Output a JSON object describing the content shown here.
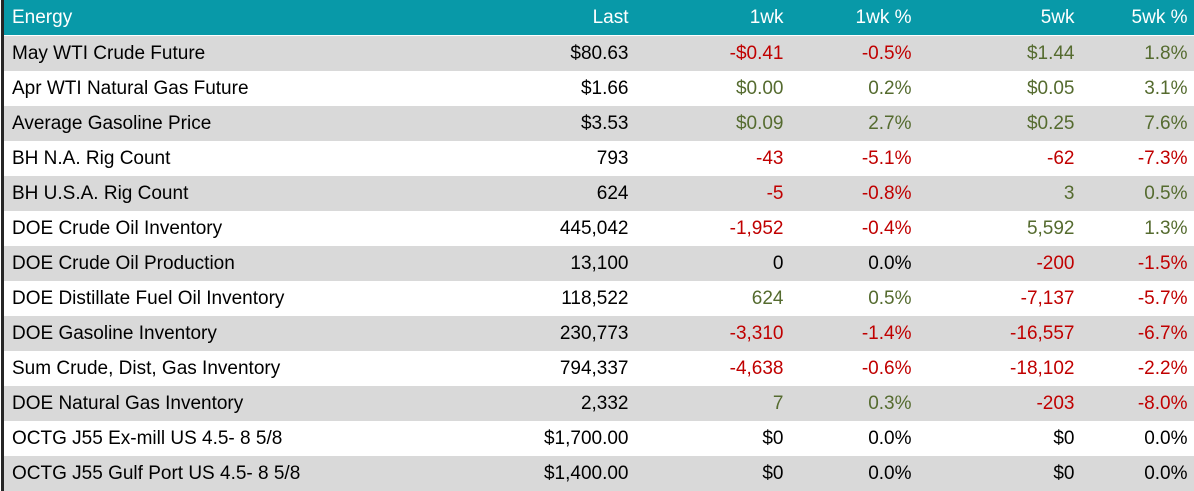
{
  "colors": {
    "header_bg": "#0899A8",
    "header_text": "#FFFFFF",
    "stripe": "#D9D9D9",
    "row_white": "#FFFFFF",
    "positive": "#556B2F",
    "negative": "#C00000",
    "neutral": "#000000",
    "left_border": "#262626"
  },
  "chart_data": {
    "type": "table",
    "title": "Energy",
    "columns": [
      "Energy",
      "Last",
      "1wk",
      "1wk %",
      "5wk",
      "5wk %"
    ],
    "rows": [
      {
        "cells": [
          "May WTI Crude Future",
          "$80.63",
          "-$0.41",
          "-0.5%",
          "$1.44",
          "1.8%"
        ],
        "tones": [
          "neu",
          "neu",
          "neg",
          "neg",
          "pos",
          "pos"
        ]
      },
      {
        "cells": [
          "Apr WTI Natural Gas Future",
          "$1.66",
          "$0.00",
          "0.2%",
          "$0.05",
          "3.1%"
        ],
        "tones": [
          "neu",
          "neu",
          "pos",
          "pos",
          "pos",
          "pos"
        ]
      },
      {
        "cells": [
          "Average Gasoline Price",
          "$3.53",
          "$0.09",
          "2.7%",
          "$0.25",
          "7.6%"
        ],
        "tones": [
          "neu",
          "neu",
          "pos",
          "pos",
          "pos",
          "pos"
        ]
      },
      {
        "cells": [
          "BH N.A. Rig Count",
          "793",
          "-43",
          "-5.1%",
          "-62",
          "-7.3%"
        ],
        "tones": [
          "neu",
          "neu",
          "neg",
          "neg",
          "neg",
          "neg"
        ]
      },
      {
        "cells": [
          "BH U.S.A. Rig Count",
          "624",
          "-5",
          "-0.8%",
          "3",
          "0.5%"
        ],
        "tones": [
          "neu",
          "neu",
          "neg",
          "neg",
          "pos",
          "pos"
        ]
      },
      {
        "cells": [
          "DOE Crude Oil Inventory",
          "445,042",
          "-1,952",
          "-0.4%",
          "5,592",
          "1.3%"
        ],
        "tones": [
          "neu",
          "neu",
          "neg",
          "neg",
          "pos",
          "pos"
        ]
      },
      {
        "cells": [
          "DOE Crude Oil Production",
          "13,100",
          "0",
          "0.0%",
          "-200",
          "-1.5%"
        ],
        "tones": [
          "neu",
          "neu",
          "neu",
          "neu",
          "neg",
          "neg"
        ]
      },
      {
        "cells": [
          "DOE Distillate Fuel Oil Inventory",
          "118,522",
          "624",
          "0.5%",
          "-7,137",
          "-5.7%"
        ],
        "tones": [
          "neu",
          "neu",
          "pos",
          "pos",
          "neg",
          "neg"
        ]
      },
      {
        "cells": [
          "DOE Gasoline Inventory",
          "230,773",
          "-3,310",
          "-1.4%",
          "-16,557",
          "-6.7%"
        ],
        "tones": [
          "neu",
          "neu",
          "neg",
          "neg",
          "neg",
          "neg"
        ]
      },
      {
        "cells": [
          "Sum Crude, Dist, Gas Inventory",
          "794,337",
          "-4,638",
          "-0.6%",
          "-18,102",
          "-2.2%"
        ],
        "tones": [
          "neu",
          "neu",
          "neg",
          "neg",
          "neg",
          "neg"
        ]
      },
      {
        "cells": [
          "DOE Natural Gas Inventory",
          "2,332",
          "7",
          "0.3%",
          "-203",
          "-8.0%"
        ],
        "tones": [
          "neu",
          "neu",
          "pos",
          "pos",
          "neg",
          "neg"
        ]
      },
      {
        "cells": [
          "OCTG J55 Ex-mill US 4.5- 8 5/8",
          "$1,700.00",
          "$0",
          "0.0%",
          "$0",
          "0.0%"
        ],
        "tones": [
          "neu",
          "neu",
          "neu",
          "neu",
          "neu",
          "neu"
        ]
      },
      {
        "cells": [
          "OCTG J55 Gulf Port US 4.5- 8 5/8",
          "$1,400.00",
          "$0",
          "0.0%",
          "$0",
          "0.0%"
        ],
        "tones": [
          "neu",
          "neu",
          "neu",
          "neu",
          "neu",
          "neu"
        ]
      }
    ]
  }
}
